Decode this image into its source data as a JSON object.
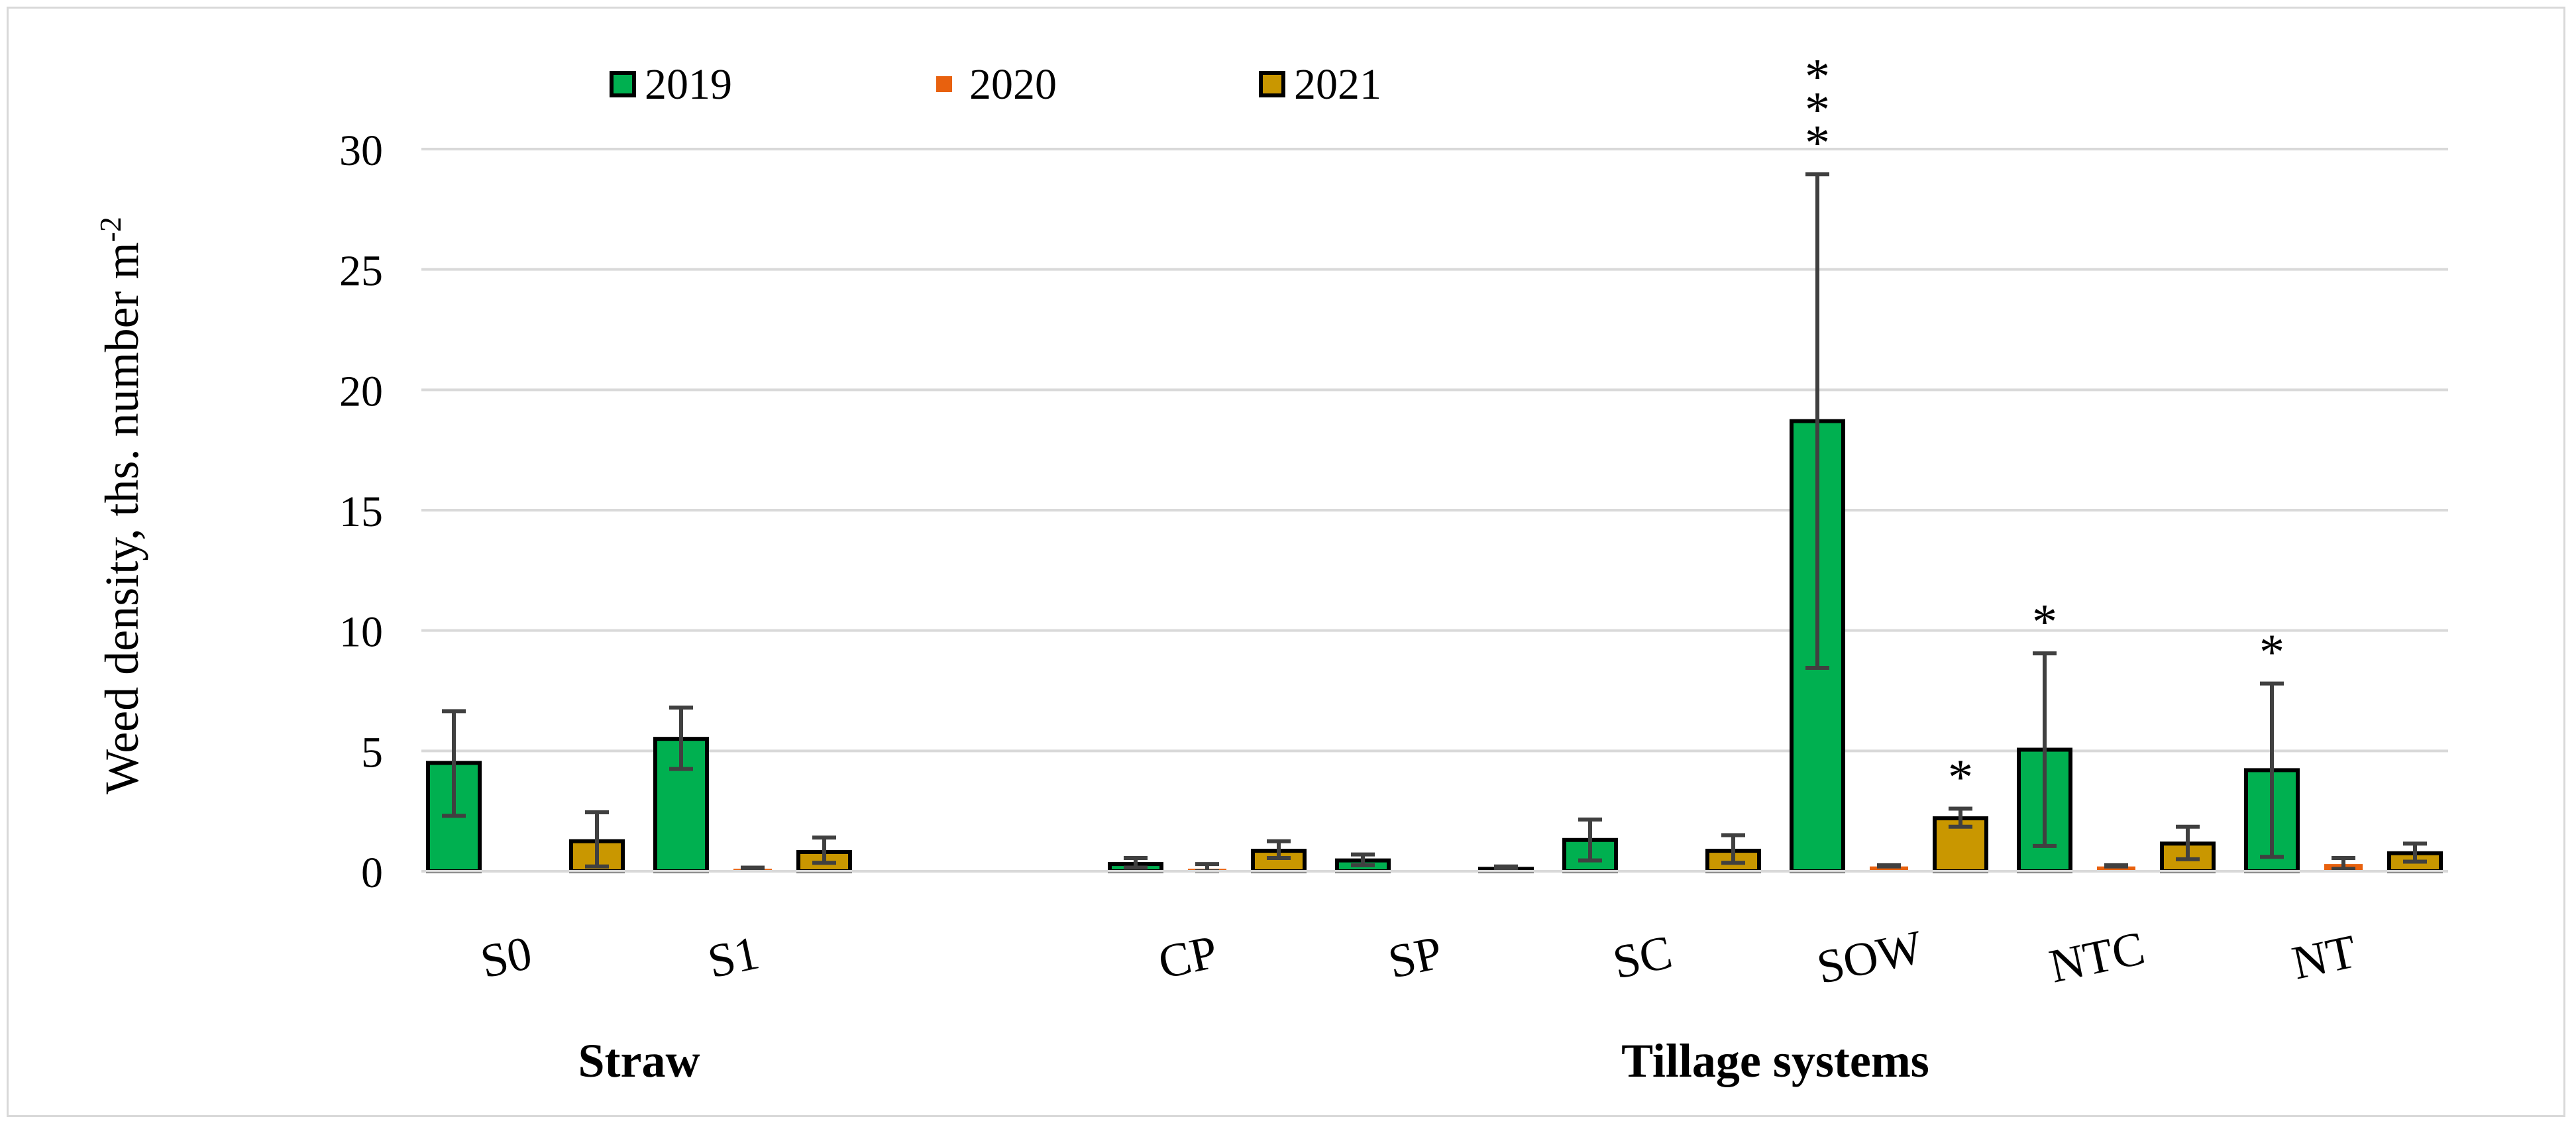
{
  "chart_data": {
    "type": "bar",
    "title": "",
    "ylabel": "Weed density, ths. number m",
    "ylabel_superscript": "-2",
    "ylim": [
      0,
      30
    ],
    "yticks": [
      0,
      5,
      10,
      15,
      20,
      25,
      30
    ],
    "grid": true,
    "legend_position": "top",
    "categories": [
      "S0",
      "S1",
      "CP",
      "SP",
      "SC",
      "SOW",
      "NTC",
      "NT"
    ],
    "groups": [
      {
        "label": "Straw",
        "categories": [
          "S0",
          "S1"
        ]
      },
      {
        "label": "Tillage systems",
        "categories": [
          "CP",
          "SP",
          "SC",
          "SOW",
          "NTC",
          "NT"
        ]
      }
    ],
    "series": [
      {
        "name": "2019",
        "color": "#00b050",
        "outlined": true,
        "values": [
          4.5,
          5.5,
          0.3,
          0.45,
          1.3,
          18.7,
          5.05,
          4.2
        ],
        "err_low": [
          2.3,
          4.25,
          0.15,
          0.25,
          0.45,
          8.45,
          1.05,
          0.6
        ],
        "err_high": [
          6.65,
          6.8,
          0.55,
          0.7,
          2.15,
          28.95,
          9.05,
          7.8
        ],
        "significance": [
          "",
          "",
          "",
          "",
          "",
          "***",
          "*",
          "*"
        ]
      },
      {
        "name": "2020",
        "color": "#e8610e",
        "outlined": false,
        "values": [
          0.05,
          0.1,
          0.1,
          0.0,
          0.0,
          0.2,
          0.2,
          0.3
        ],
        "err_low": [
          0.05,
          0.1,
          0.0,
          0.0,
          0.0,
          0.2,
          0.2,
          0.1
        ],
        "err_high": [
          0.05,
          0.15,
          0.3,
          0.0,
          0.0,
          0.25,
          0.25,
          0.55
        ],
        "significance": [
          "",
          "",
          "",
          "",
          "",
          "",
          "",
          ""
        ]
      },
      {
        "name": "2021",
        "color": "#c99700",
        "outlined": true,
        "values": [
          1.25,
          0.8,
          0.85,
          0.1,
          0.85,
          2.2,
          1.15,
          0.75
        ],
        "err_low": [
          0.2,
          0.35,
          0.55,
          0.05,
          0.35,
          1.85,
          0.5,
          0.4
        ],
        "err_high": [
          2.45,
          1.4,
          1.25,
          0.2,
          1.5,
          2.6,
          1.85,
          1.15
        ],
        "significance": [
          "",
          "",
          "",
          "",
          "",
          "*",
          "",
          ""
        ]
      }
    ]
  }
}
